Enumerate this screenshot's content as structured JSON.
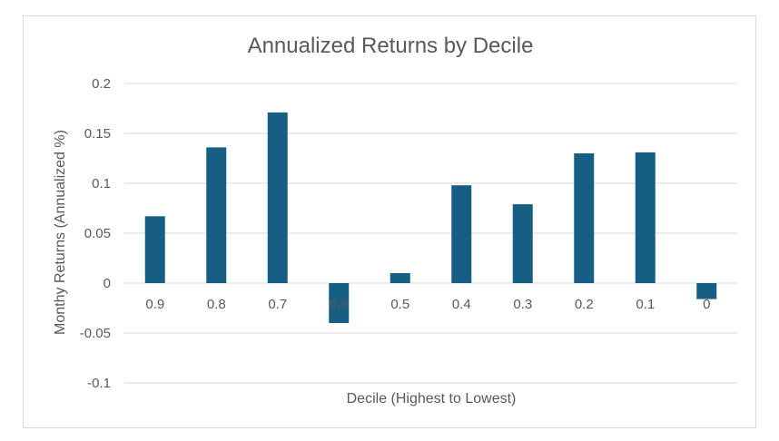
{
  "chart_data": {
    "type": "bar",
    "title": "Annualized Returns by Decile",
    "xlabel": "Decile (Highest to Lowest)",
    "ylabel": "Monthy Returns (Annualized %)",
    "categories": [
      "0.9",
      "0.8",
      "0.7",
      "0.6",
      "0.5",
      "0.4",
      "0.3",
      "0.2",
      "0.1",
      "0"
    ],
    "values": [
      0.067,
      0.136,
      0.171,
      -0.04,
      0.01,
      0.098,
      0.079,
      0.13,
      0.131,
      -0.016
    ],
    "ylim": [
      -0.1,
      0.2
    ],
    "yticks": [
      "-0.1",
      "-0.05",
      "0",
      "0.05",
      "0.1",
      "0.15",
      "0.2"
    ],
    "grid": true,
    "legend": "none",
    "colors": {
      "bar": "#165e83",
      "grid": "#d9d9d9",
      "text": "#595959"
    }
  }
}
